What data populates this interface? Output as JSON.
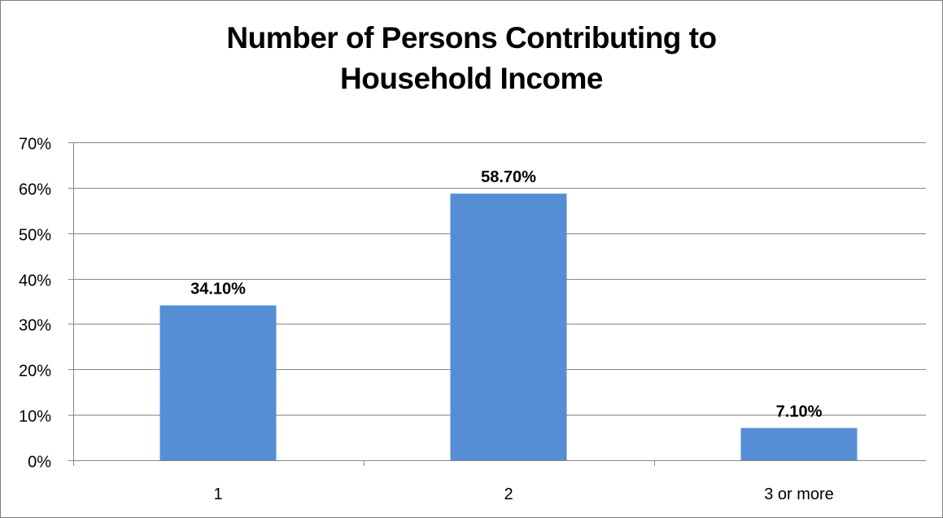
{
  "chart_data": {
    "type": "bar",
    "title_lines": [
      "Number of Persons Contributing to",
      "Household Income"
    ],
    "categories": [
      "1",
      "2",
      "3 or more"
    ],
    "values": [
      34.1,
      58.7,
      7.1
    ],
    "data_labels": [
      "34.10%",
      "58.70%",
      "7.10%"
    ],
    "ylim": [
      0,
      70
    ],
    "yticks": [
      0,
      10,
      20,
      30,
      40,
      50,
      60,
      70
    ],
    "ytick_labels": [
      "0%",
      "10%",
      "20%",
      "30%",
      "40%",
      "50%",
      "60%",
      "70%"
    ],
    "grid": true,
    "legend": "none",
    "bar_color": "#558ed5",
    "grid_color": "#868686"
  }
}
